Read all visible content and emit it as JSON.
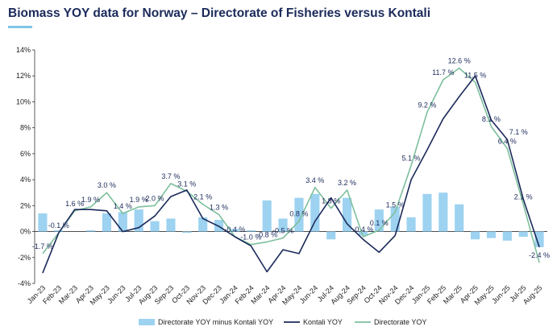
{
  "header": {
    "title": "Biomass YOY data for Norway – Directorate of Fisheries versus Kontali"
  },
  "colors": {
    "bar": "#9dd2f1",
    "kontali": "#1b2a5a",
    "directorate": "#7dbf9c",
    "axis": "#333333"
  },
  "chart_data": {
    "type": "bar+line",
    "title": "Biomass YOY data for Norway – Directorate of Fisheries versus Kontali",
    "categories": [
      "Jan-23",
      "Feb-23",
      "Mar-23",
      "Apr-23",
      "May-23",
      "Jun-23",
      "Jul-23",
      "Aug-23",
      "Sep-23",
      "Oct-23",
      "Nov-23",
      "Dec-23",
      "Jan-24",
      "Feb-24",
      "Mar-24",
      "Apr-24",
      "May-24",
      "Jun-24",
      "Jul-24",
      "Aug-24",
      "Sep-24",
      "Oct-24",
      "Nov-24",
      "Dec-24",
      "Jan-25",
      "Feb-25",
      "Mar-25",
      "Apr-25",
      "May-25",
      "Jun-25",
      "Jul-25",
      "Aug-25"
    ],
    "ylim": [
      -4,
      14
    ],
    "yticks": [
      -4,
      -2,
      0,
      2,
      4,
      6,
      8,
      10,
      12,
      14
    ],
    "ytick_labels": [
      "-4%",
      "-2%",
      "0%",
      "2%",
      "4%",
      "6%",
      "8%",
      "10%",
      "12%",
      "14%"
    ],
    "xlabel": "",
    "ylabel": "",
    "legend_position": "bottom",
    "series": [
      {
        "name": "Directorate YOY minus Kontali YOY",
        "kind": "bar",
        "values": [
          1.4,
          0.1,
          0.0,
          0.1,
          1.4,
          1.5,
          1.7,
          0.8,
          1.0,
          -0.1,
          1.1,
          0.9,
          0.2,
          0.1,
          2.4,
          1.0,
          2.6,
          2.9,
          -0.6,
          2.6,
          -0.3,
          1.7,
          1.9,
          1.1,
          2.9,
          3.0,
          2.1,
          -0.6,
          -0.5,
          -0.7,
          -0.4,
          -1.2
        ]
      },
      {
        "name": "Kontali YOY",
        "kind": "line",
        "values": [
          -3.2,
          -0.1,
          1.7,
          1.7,
          1.6,
          0.0,
          0.3,
          1.2,
          2.7,
          3.2,
          1.0,
          0.4,
          -0.4,
          -1.1,
          -3.1,
          -1.4,
          -1.7,
          0.8,
          2.6,
          0.6,
          -0.6,
          -1.6,
          -0.3,
          4.0,
          6.3,
          8.7,
          10.4,
          12.0,
          8.6,
          7.1,
          2.5,
          -1.2
        ]
      },
      {
        "name": "Directorate YOY",
        "kind": "line",
        "values": [
          -1.7,
          -0.1,
          1.6,
          1.9,
          3.0,
          1.4,
          1.9,
          2.0,
          3.7,
          3.1,
          2.1,
          1.3,
          -0.4,
          -1.0,
          -0.8,
          -0.5,
          0.8,
          3.4,
          1.8,
          3.2,
          -0.4,
          0.1,
          1.5,
          5.1,
          9.2,
          11.7,
          12.6,
          11.5,
          8.1,
          6.4,
          2.1,
          -2.4
        ]
      }
    ],
    "data_labels": [
      {
        "text": "-1.7 %",
        "cat": 0,
        "y": -1.7
      },
      {
        "text": "-0.1 %",
        "cat": 1,
        "y": -0.1
      },
      {
        "text": "1.6 %",
        "cat": 2,
        "y": 1.6
      },
      {
        "text": "1.9 %",
        "cat": 3,
        "y": 1.9
      },
      {
        "text": "3.0 %",
        "cat": 4,
        "y": 3.0
      },
      {
        "text": "1.4 %",
        "cat": 5,
        "y": 1.4
      },
      {
        "text": "1.9 %",
        "cat": 6,
        "y": 1.9
      },
      {
        "text": "2.0 %",
        "cat": 7,
        "y": 2.0
      },
      {
        "text": "3.7 %",
        "cat": 8,
        "y": 3.7
      },
      {
        "text": "3.1 %",
        "cat": 9,
        "y": 3.1
      },
      {
        "text": "2.1 %",
        "cat": 10,
        "y": 2.1
      },
      {
        "text": "1.3 %",
        "cat": 11,
        "y": 1.3
      },
      {
        "text": "-0.4 %",
        "cat": 12,
        "y": -0.4
      },
      {
        "text": "-1.0 %",
        "cat": 13,
        "y": -1.0
      },
      {
        "text": "-0.8 %",
        "cat": 14,
        "y": -0.8
      },
      {
        "text": "-0.5 %",
        "cat": 15,
        "y": -0.5
      },
      {
        "text": "0.8 %",
        "cat": 16,
        "y": 0.8
      },
      {
        "text": "3.4 %",
        "cat": 17,
        "y": 3.4
      },
      {
        "text": "1.8 %",
        "cat": 18,
        "y": 1.8
      },
      {
        "text": "3.2 %",
        "cat": 19,
        "y": 3.2
      },
      {
        "text": "-0.4 %",
        "cat": 20,
        "y": -0.4
      },
      {
        "text": "0.1 %",
        "cat": 21,
        "y": 0.1
      },
      {
        "text": "1.5 %",
        "cat": 22,
        "y": 1.5
      },
      {
        "text": "5.1 %",
        "cat": 23,
        "y": 5.1
      },
      {
        "text": "9.2 %",
        "cat": 24,
        "y": 9.2
      },
      {
        "text": "11.7 %",
        "cat": 25,
        "y": 11.7
      },
      {
        "text": "12.6 %",
        "cat": 26,
        "y": 12.6
      },
      {
        "text": "11.5 %",
        "cat": 27,
        "y": 11.5
      },
      {
        "text": "8.1 %",
        "cat": 28,
        "y": 8.1
      },
      {
        "text": "6.4 %",
        "cat": 29,
        "y": 6.4
      },
      {
        "text": "7.1 %",
        "cat": 29.7,
        "y": 7.1
      },
      {
        "text": "2.1 %",
        "cat": 30,
        "y": 2.1
      },
      {
        "text": "-2.4 %",
        "cat": 31,
        "y": -2.4
      }
    ]
  }
}
